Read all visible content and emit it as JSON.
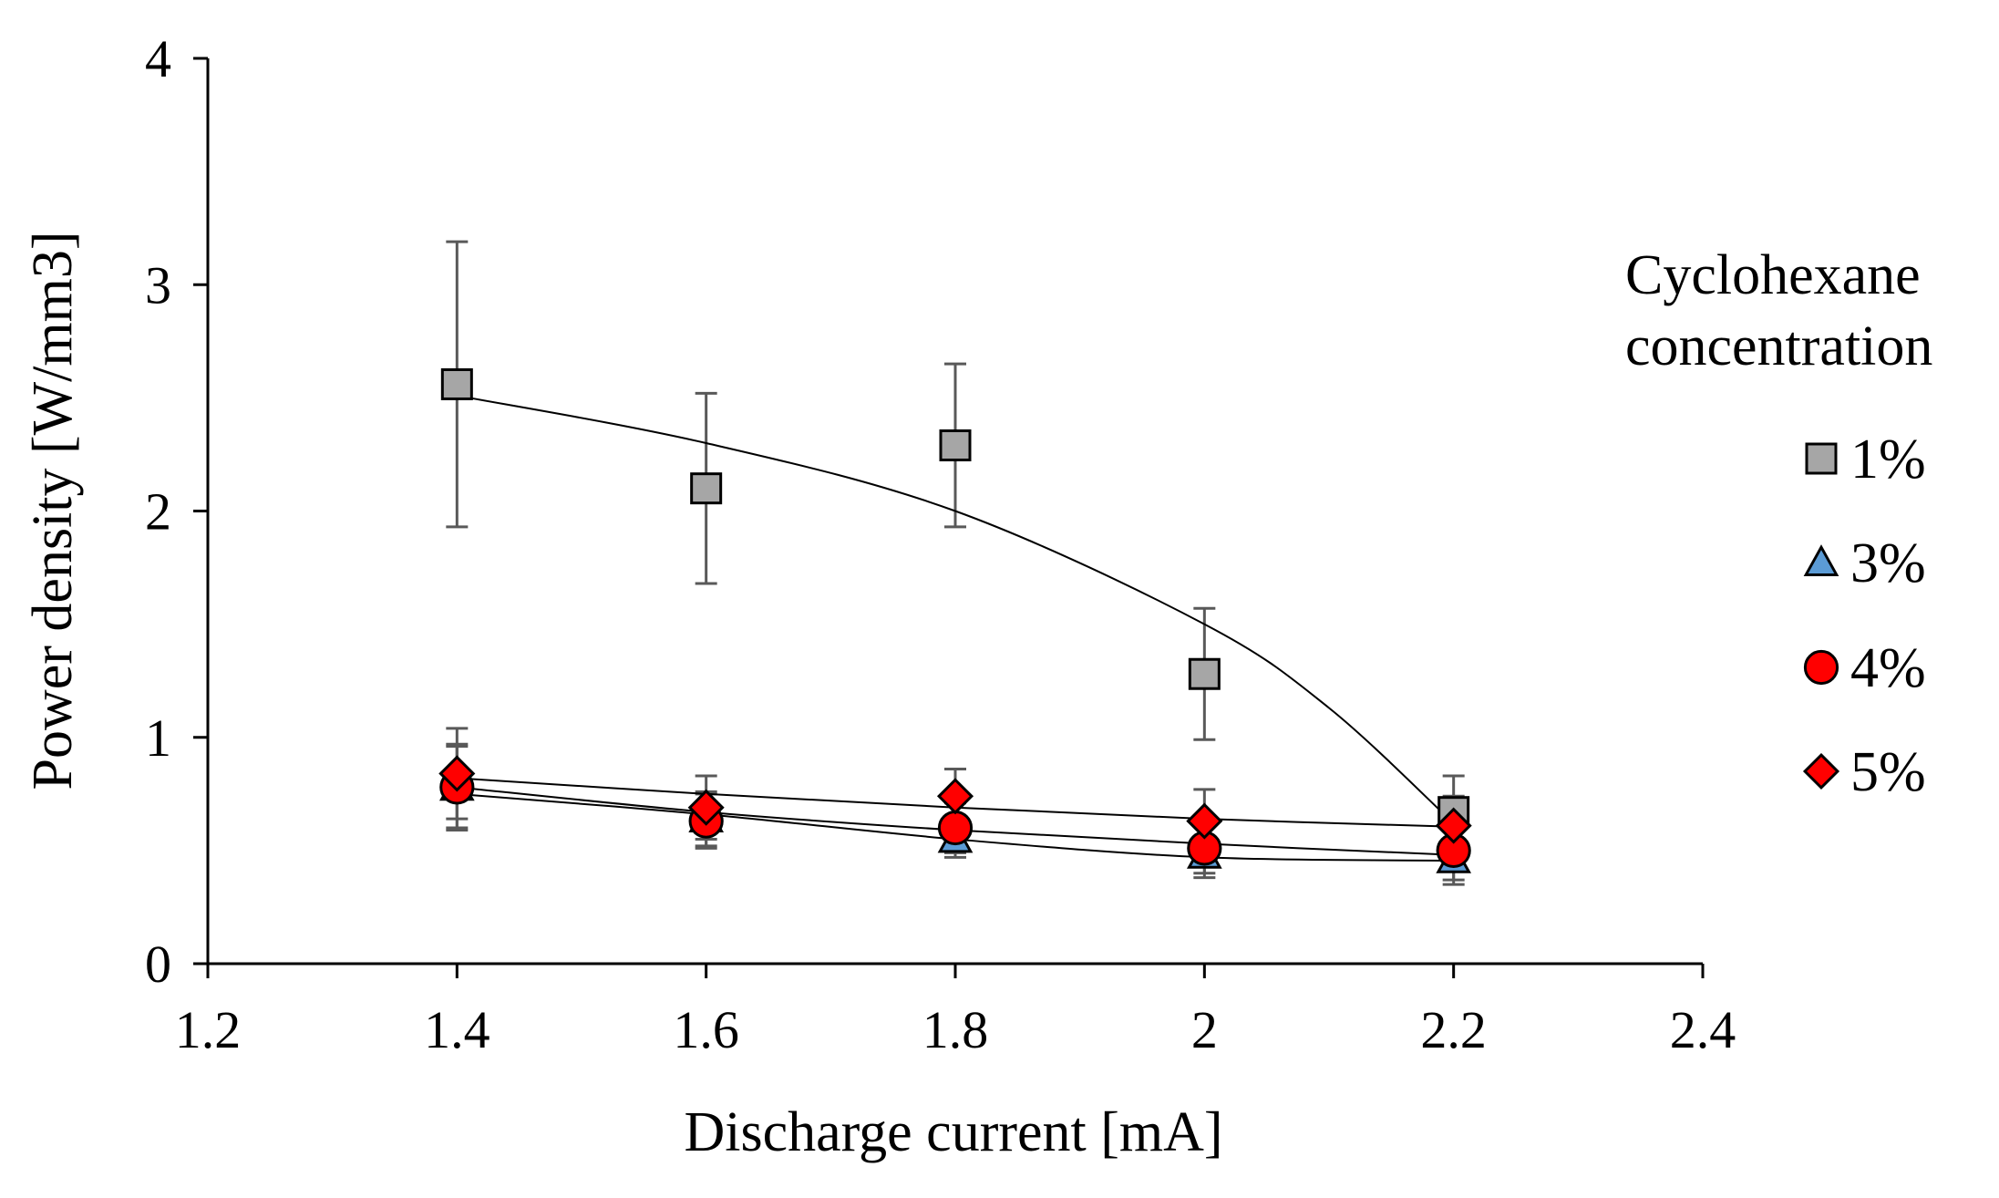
{
  "chart_data": {
    "type": "scatter",
    "title": "",
    "xlabel": "Discharge current [mA]",
    "ylabel": "Power density [W/mm3]",
    "xlim": [
      1.2,
      2.4
    ],
    "ylim": [
      0,
      4
    ],
    "xticks": [
      1.2,
      1.4,
      1.6,
      1.8,
      2.0,
      2.2,
      2.4
    ],
    "xtick_labels": [
      "1.2",
      "1.4",
      "1.6",
      "1.8",
      "2",
      "2.2",
      "2.4"
    ],
    "yticks": [
      0,
      1,
      2,
      3,
      4
    ],
    "ytick_labels": [
      "0",
      "1",
      "2",
      "3",
      "4"
    ],
    "grid": false,
    "legend": {
      "title_lines": [
        "Cyclohexane",
        "concentration"
      ],
      "position": "right"
    },
    "series": [
      {
        "name": "1%",
        "marker": "square",
        "color": "#a6a6a6",
        "x": [
          1.4,
          1.6,
          1.8,
          2.0,
          2.2
        ],
        "y": [
          2.56,
          2.1,
          2.29,
          1.28,
          0.67
        ],
        "err": [
          0.63,
          0.42,
          0.36,
          0.29,
          0.16
        ],
        "trend": [
          [
            1.4,
            2.51
          ],
          [
            1.6,
            2.3
          ],
          [
            1.8,
            2.0
          ],
          [
            2.0,
            1.5
          ],
          [
            2.1,
            1.13
          ],
          [
            2.2,
            0.62
          ]
        ]
      },
      {
        "name": "3%",
        "marker": "triangle",
        "color": "#5b9bd5",
        "x": [
          1.4,
          1.6,
          1.8,
          2.0,
          2.2
        ],
        "y": [
          0.78,
          0.64,
          0.55,
          0.48,
          0.46
        ],
        "err": [
          0.18,
          0.12,
          0.08,
          0.08,
          0.09
        ],
        "trend": [
          [
            1.4,
            0.75
          ],
          [
            1.6,
            0.66
          ],
          [
            1.8,
            0.55
          ],
          [
            2.0,
            0.47
          ],
          [
            2.2,
            0.455
          ]
        ]
      },
      {
        "name": "4%",
        "marker": "circle",
        "color": "#ff0000",
        "x": [
          1.4,
          1.6,
          1.8,
          2.0,
          2.2
        ],
        "y": [
          0.78,
          0.63,
          0.6,
          0.51,
          0.5
        ],
        "err": [
          0.19,
          0.12,
          0.11,
          0.13,
          0.15
        ],
        "trend": [
          [
            1.4,
            0.78
          ],
          [
            1.6,
            0.67
          ],
          [
            1.8,
            0.59
          ],
          [
            2.0,
            0.53
          ],
          [
            2.2,
            0.48
          ]
        ]
      },
      {
        "name": "5%",
        "marker": "diamond",
        "color": "#ff0000",
        "x": [
          1.4,
          1.6,
          1.8,
          2.0,
          2.2
        ],
        "y": [
          0.84,
          0.69,
          0.74,
          0.63,
          0.61
        ],
        "err": [
          0.2,
          0.14,
          0.12,
          0.14,
          0.13
        ],
        "trend": [
          [
            1.4,
            0.82
          ],
          [
            1.6,
            0.75
          ],
          [
            1.8,
            0.69
          ],
          [
            2.0,
            0.64
          ],
          [
            2.2,
            0.605
          ]
        ]
      }
    ]
  }
}
